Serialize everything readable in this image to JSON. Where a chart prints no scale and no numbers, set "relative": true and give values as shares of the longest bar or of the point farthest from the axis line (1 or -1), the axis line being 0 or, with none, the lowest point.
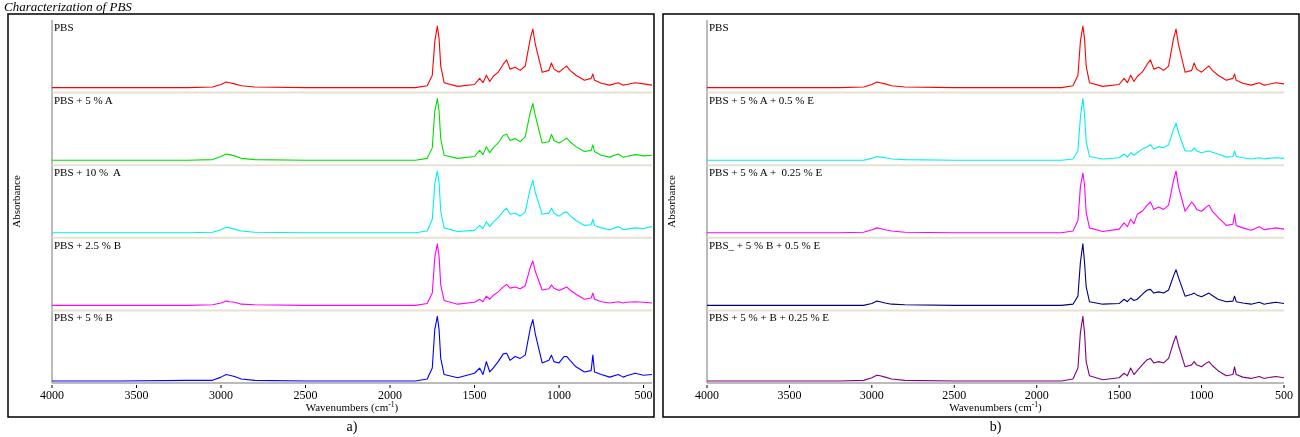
{
  "chart_data": [
    {
      "type": "line",
      "title": "PBS",
      "annotations": [
        "Characterization of PBS"
      ],
      "x": [
        4000,
        3600,
        3200,
        3050,
        3000,
        2970,
        2950,
        2920,
        2880,
        2800,
        2500,
        2000,
        1850,
        1780,
        1750,
        1735,
        1720,
        1710,
        1700,
        1680,
        1600,
        1500,
        1470,
        1450,
        1430,
        1410,
        1390,
        1360,
        1330,
        1310,
        1290,
        1260,
        1230,
        1200,
        1170,
        1155,
        1140,
        1100,
        1060,
        1045,
        1030,
        1000,
        970,
        955,
        935,
        900,
        850,
        810,
        800,
        790,
        750,
        700,
        650,
        620,
        600,
        550,
        500,
        450
      ],
      "xlim": [
        4000,
        450
      ],
      "relative": true,
      "tick_labels": false,
      "series": [
        {
          "color": "#ff0000",
          "values": [
            0,
            0,
            0,
            0.01,
            0.05,
            0.09,
            0.08,
            0.06,
            0.03,
            0.01,
            0,
            0,
            0,
            0.03,
            0.2,
            0.75,
            1,
            0.8,
            0.35,
            0.08,
            0.02,
            0.05,
            0.15,
            0.08,
            0.2,
            0.1,
            0.18,
            0.25,
            0.38,
            0.45,
            0.3,
            0.33,
            0.28,
            0.35,
            0.8,
            0.95,
            0.7,
            0.25,
            0.28,
            0.4,
            0.3,
            0.25,
            0.32,
            0.35,
            0.28,
            0.2,
            0.12,
            0.15,
            0.22,
            0.12,
            0.07,
            0.04,
            0.08,
            0.04,
            0.05,
            0.08,
            0.06,
            0.04
          ]
        }
      ]
    },
    {
      "type": "line",
      "title": "PBS + 5 % A",
      "x": [
        4000,
        3600,
        3200,
        3050,
        3000,
        2970,
        2950,
        2920,
        2880,
        2800,
        2500,
        2000,
        1850,
        1780,
        1750,
        1735,
        1720,
        1710,
        1700,
        1680,
        1600,
        1500,
        1470,
        1450,
        1430,
        1410,
        1390,
        1360,
        1330,
        1310,
        1290,
        1260,
        1230,
        1200,
        1170,
        1155,
        1140,
        1100,
        1060,
        1045,
        1030,
        1000,
        970,
        955,
        935,
        900,
        850,
        810,
        800,
        790,
        750,
        700,
        650,
        620,
        600,
        550,
        500,
        450
      ],
      "xlim": [
        4000,
        450
      ],
      "relative": true,
      "tick_labels": false,
      "series": [
        {
          "color": "#00e000",
          "values": [
            0,
            0,
            0,
            0.01,
            0.06,
            0.1,
            0.09,
            0.07,
            0.03,
            0.01,
            0,
            0,
            0,
            0.03,
            0.2,
            0.8,
            1,
            0.8,
            0.35,
            0.08,
            0.03,
            0.06,
            0.16,
            0.09,
            0.22,
            0.12,
            0.2,
            0.28,
            0.4,
            0.42,
            0.32,
            0.35,
            0.3,
            0.38,
            0.78,
            0.92,
            0.72,
            0.28,
            0.3,
            0.42,
            0.32,
            0.28,
            0.33,
            0.36,
            0.3,
            0.22,
            0.14,
            0.16,
            0.25,
            0.14,
            0.08,
            0.05,
            0.1,
            0.05,
            0.06,
            0.09,
            0.07,
            0.08
          ]
        }
      ]
    },
    {
      "type": "line",
      "title": "PBS + 10 %  A",
      "ylabel": "Absorbance",
      "x": [
        4000,
        3600,
        3200,
        3050,
        3000,
        2970,
        2950,
        2920,
        2880,
        2800,
        2500,
        2000,
        1850,
        1780,
        1750,
        1735,
        1720,
        1710,
        1700,
        1680,
        1600,
        1500,
        1470,
        1450,
        1430,
        1410,
        1390,
        1360,
        1330,
        1310,
        1290,
        1260,
        1230,
        1200,
        1170,
        1155,
        1140,
        1100,
        1060,
        1045,
        1030,
        1000,
        970,
        955,
        935,
        900,
        850,
        810,
        800,
        790,
        750,
        700,
        650,
        620,
        600,
        550,
        500,
        450
      ],
      "xlim": [
        4000,
        450
      ],
      "relative": true,
      "tick_labels": false,
      "series": [
        {
          "color": "#00f0f0",
          "values": [
            0,
            0,
            0,
            0.01,
            0.05,
            0.09,
            0.08,
            0.06,
            0.03,
            0.01,
            0,
            0,
            0,
            0.03,
            0.22,
            0.8,
            1,
            0.82,
            0.35,
            0.08,
            0.02,
            0.04,
            0.12,
            0.07,
            0.18,
            0.1,
            0.17,
            0.25,
            0.35,
            0.4,
            0.3,
            0.32,
            0.27,
            0.34,
            0.72,
            0.85,
            0.65,
            0.3,
            0.32,
            0.4,
            0.32,
            0.27,
            0.33,
            0.34,
            0.28,
            0.2,
            0.12,
            0.13,
            0.22,
            0.12,
            0.08,
            0.05,
            0.1,
            0.05,
            0.06,
            0.08,
            0.07,
            0.1
          ]
        }
      ]
    },
    {
      "type": "line",
      "title": "PBS + 2.5 % B",
      "x": [
        4000,
        3600,
        3200,
        3050,
        3000,
        2970,
        2950,
        2920,
        2880,
        2800,
        2500,
        2000,
        1850,
        1780,
        1750,
        1735,
        1720,
        1710,
        1700,
        1680,
        1600,
        1500,
        1470,
        1450,
        1430,
        1410,
        1390,
        1360,
        1330,
        1310,
        1290,
        1260,
        1230,
        1200,
        1170,
        1155,
        1140,
        1100,
        1060,
        1045,
        1030,
        1000,
        970,
        955,
        935,
        900,
        850,
        810,
        800,
        790,
        750,
        700,
        650,
        620,
        600,
        550,
        500,
        450
      ],
      "xlim": [
        4000,
        450
      ],
      "relative": true,
      "tick_labels": false,
      "series": [
        {
          "color": "#ff00ff",
          "values": [
            0,
            0,
            0,
            0.01,
            0.04,
            0.07,
            0.06,
            0.05,
            0.02,
            0.01,
            0,
            0,
            0,
            0.03,
            0.2,
            0.78,
            1,
            0.8,
            0.33,
            0.08,
            0.02,
            0.05,
            0.1,
            0.06,
            0.15,
            0.1,
            0.16,
            0.22,
            0.3,
            0.34,
            0.28,
            0.3,
            0.27,
            0.32,
            0.62,
            0.72,
            0.55,
            0.25,
            0.27,
            0.33,
            0.28,
            0.24,
            0.28,
            0.3,
            0.25,
            0.18,
            0.1,
            0.12,
            0.2,
            0.1,
            0.06,
            0.04,
            0.06,
            0.04,
            0.05,
            0.06,
            0.05,
            0.04
          ]
        }
      ]
    },
    {
      "type": "line",
      "title": "PBS + 5 % B",
      "xlabel": "Wavenumbers (cm$^{-1}$)",
      "annotations": [
        "a)"
      ],
      "x": [
        4000,
        3600,
        3200,
        3050,
        3000,
        2970,
        2950,
        2920,
        2880,
        2800,
        2500,
        2000,
        1850,
        1780,
        1750,
        1735,
        1720,
        1710,
        1700,
        1680,
        1600,
        1500,
        1470,
        1450,
        1430,
        1410,
        1390,
        1360,
        1330,
        1310,
        1290,
        1260,
        1230,
        1200,
        1170,
        1155,
        1140,
        1100,
        1060,
        1045,
        1030,
        1000,
        970,
        955,
        935,
        900,
        850,
        810,
        800,
        790,
        750,
        700,
        650,
        620,
        600,
        550,
        500,
        450
      ],
      "xlim": [
        4000,
        450
      ],
      "xticks": [
        4000,
        3500,
        3000,
        2500,
        2000,
        1500,
        1000,
        500
      ],
      "relative": true,
      "tick_labels": "x",
      "series": [
        {
          "color": "#0000ff",
          "values": [
            0,
            0,
            0.01,
            0.01,
            0.06,
            0.1,
            0.09,
            0.07,
            0.03,
            0.01,
            0,
            0,
            0,
            0.03,
            0.2,
            0.8,
            1,
            0.8,
            0.35,
            0.1,
            0.05,
            0.12,
            0.2,
            0.1,
            0.3,
            0.14,
            0.2,
            0.3,
            0.42,
            0.43,
            0.32,
            0.38,
            0.35,
            0.4,
            0.82,
            0.95,
            0.72,
            0.28,
            0.32,
            0.4,
            0.3,
            0.28,
            0.38,
            0.38,
            0.32,
            0.22,
            0.14,
            0.16,
            0.4,
            0.14,
            0.1,
            0.06,
            0.1,
            0.06,
            0.08,
            0.12,
            0.09,
            0.1
          ]
        }
      ]
    },
    {
      "type": "line",
      "title": "PBS",
      "x": [
        4000,
        3600,
        3200,
        3050,
        3000,
        2970,
        2950,
        2920,
        2880,
        2800,
        2500,
        2000,
        1850,
        1780,
        1750,
        1735,
        1720,
        1710,
        1700,
        1680,
        1600,
        1500,
        1470,
        1450,
        1430,
        1410,
        1390,
        1360,
        1330,
        1310,
        1290,
        1260,
        1230,
        1200,
        1170,
        1155,
        1140,
        1100,
        1060,
        1045,
        1030,
        1000,
        970,
        955,
        935,
        900,
        850,
        810,
        800,
        790,
        750,
        700,
        650,
        620,
        600,
        550,
        500
      ],
      "xlim": [
        4000,
        500
      ],
      "relative": true,
      "tick_labels": false,
      "series": [
        {
          "color": "#ff0000",
          "values": [
            0,
            0,
            0,
            0.01,
            0.05,
            0.09,
            0.08,
            0.06,
            0.03,
            0.01,
            0,
            0,
            0,
            0.03,
            0.2,
            0.75,
            1,
            0.8,
            0.35,
            0.08,
            0.02,
            0.05,
            0.15,
            0.08,
            0.2,
            0.1,
            0.18,
            0.25,
            0.38,
            0.45,
            0.3,
            0.33,
            0.28,
            0.35,
            0.8,
            0.95,
            0.7,
            0.25,
            0.28,
            0.4,
            0.3,
            0.25,
            0.32,
            0.35,
            0.28,
            0.2,
            0.12,
            0.15,
            0.22,
            0.12,
            0.07,
            0.04,
            0.08,
            0.04,
            0.05,
            0.08,
            0.06
          ]
        }
      ]
    },
    {
      "type": "line",
      "title": "PBS + 5 % A + 0.5 % E",
      "x": [
        4000,
        3600,
        3200,
        3050,
        3000,
        2970,
        2950,
        2920,
        2880,
        2800,
        2500,
        2000,
        1850,
        1780,
        1750,
        1735,
        1720,
        1710,
        1700,
        1680,
        1600,
        1500,
        1470,
        1450,
        1430,
        1410,
        1390,
        1360,
        1330,
        1310,
        1290,
        1260,
        1230,
        1200,
        1170,
        1155,
        1140,
        1100,
        1060,
        1045,
        1030,
        1000,
        970,
        955,
        935,
        900,
        850,
        810,
        800,
        790,
        750,
        700,
        650,
        620,
        600,
        550,
        500
      ],
      "xlim": [
        4000,
        500
      ],
      "relative": true,
      "tick_labels": false,
      "series": [
        {
          "color": "#00f0f0",
          "values": [
            0,
            0,
            0,
            0,
            0.03,
            0.06,
            0.05,
            0.04,
            0.02,
            0.01,
            0,
            0,
            0,
            0.02,
            0.15,
            0.7,
            1,
            0.75,
            0.3,
            0.06,
            0.02,
            0.04,
            0.1,
            0.05,
            0.12,
            0.08,
            0.12,
            0.18,
            0.22,
            0.25,
            0.18,
            0.22,
            0.2,
            0.25,
            0.5,
            0.6,
            0.45,
            0.15,
            0.15,
            0.2,
            0.15,
            0.12,
            0.14,
            0.15,
            0.13,
            0.1,
            0.05,
            0.06,
            0.15,
            0.06,
            0.04,
            0.02,
            0.04,
            0.02,
            0.03,
            0.04,
            0.03
          ]
        }
      ]
    },
    {
      "type": "line",
      "title": "PBS + 5 % A +  0.25 % E",
      "ylabel": "Absorbance",
      "x": [
        4000,
        3600,
        3200,
        3050,
        3000,
        2970,
        2950,
        2920,
        2880,
        2800,
        2500,
        2000,
        1850,
        1780,
        1750,
        1735,
        1720,
        1710,
        1700,
        1680,
        1600,
        1500,
        1470,
        1450,
        1430,
        1410,
        1390,
        1360,
        1330,
        1310,
        1290,
        1260,
        1230,
        1200,
        1170,
        1155,
        1140,
        1100,
        1060,
        1045,
        1030,
        1000,
        970,
        955,
        935,
        900,
        850,
        810,
        800,
        790,
        750,
        700,
        650,
        620,
        600,
        550,
        500
      ],
      "xlim": [
        4000,
        500
      ],
      "relative": true,
      "tick_labels": false,
      "series": [
        {
          "color": "#ff00ff",
          "values": [
            0,
            0,
            0,
            0.01,
            0.05,
            0.08,
            0.07,
            0.05,
            0.03,
            0.01,
            0,
            0,
            0,
            0.03,
            0.2,
            0.75,
            0.97,
            0.78,
            0.33,
            0.08,
            0.02,
            0.06,
            0.16,
            0.1,
            0.22,
            0.15,
            0.3,
            0.35,
            0.45,
            0.5,
            0.38,
            0.42,
            0.38,
            0.45,
            0.85,
            1,
            0.75,
            0.35,
            0.5,
            0.45,
            0.38,
            0.35,
            0.42,
            0.45,
            0.35,
            0.25,
            0.12,
            0.14,
            0.3,
            0.12,
            0.08,
            0.04,
            0.1,
            0.05,
            0.06,
            0.08,
            0.06
          ]
        }
      ]
    },
    {
      "type": "line",
      "title": "PBS_ + 5 % B + 0.5 % E",
      "x": [
        4000,
        3600,
        3200,
        3050,
        3000,
        2970,
        2950,
        2920,
        2880,
        2800,
        2500,
        2000,
        1850,
        1780,
        1750,
        1735,
        1720,
        1710,
        1700,
        1680,
        1600,
        1500,
        1470,
        1450,
        1430,
        1410,
        1390,
        1360,
        1330,
        1310,
        1290,
        1260,
        1230,
        1200,
        1170,
        1155,
        1140,
        1100,
        1060,
        1045,
        1030,
        1000,
        970,
        955,
        935,
        900,
        850,
        810,
        800,
        790,
        750,
        700,
        650,
        620,
        600,
        550,
        500
      ],
      "xlim": [
        4000,
        500
      ],
      "relative": true,
      "tick_labels": false,
      "series": [
        {
          "color": "#000080",
          "values": [
            0,
            0,
            0,
            0,
            0.03,
            0.07,
            0.06,
            0.04,
            0.02,
            0.01,
            0,
            0,
            0,
            0.02,
            0.15,
            0.7,
            1,
            0.7,
            0.3,
            0.06,
            0.02,
            0.03,
            0.1,
            0.06,
            0.12,
            0.08,
            0.1,
            0.18,
            0.25,
            0.26,
            0.2,
            0.22,
            0.2,
            0.25,
            0.48,
            0.58,
            0.45,
            0.15,
            0.18,
            0.2,
            0.17,
            0.14,
            0.18,
            0.2,
            0.16,
            0.1,
            0.06,
            0.07,
            0.15,
            0.06,
            0.04,
            0.02,
            0.05,
            0.02,
            0.03,
            0.05,
            0.03
          ]
        }
      ]
    },
    {
      "type": "line",
      "title": "PBS + 5 % + B + 0.25 % E",
      "xlabel": "Wavenumbers (cm$^{-1}$)",
      "annotations": [
        "b)"
      ],
      "x": [
        4000,
        3600,
        3200,
        3050,
        3000,
        2970,
        2950,
        2920,
        2880,
        2800,
        2500,
        2000,
        1850,
        1780,
        1750,
        1735,
        1720,
        1710,
        1700,
        1680,
        1600,
        1500,
        1470,
        1450,
        1430,
        1410,
        1390,
        1360,
        1330,
        1310,
        1290,
        1260,
        1230,
        1200,
        1170,
        1155,
        1140,
        1100,
        1060,
        1045,
        1030,
        1000,
        970,
        955,
        935,
        900,
        850,
        810,
        800,
        790,
        750,
        700,
        650,
        620,
        600,
        550,
        500
      ],
      "xlim": [
        4000,
        500
      ],
      "xticks": [
        4000,
        3500,
        3000,
        2500,
        2000,
        1500,
        1000,
        500
      ],
      "relative": true,
      "tick_labels": "x",
      "series": [
        {
          "color": "#800080",
          "values": [
            0,
            0,
            0,
            0.01,
            0.05,
            0.09,
            0.08,
            0.06,
            0.03,
            0.01,
            0,
            0,
            0,
            0.03,
            0.2,
            0.75,
            1,
            0.75,
            0.3,
            0.08,
            0.02,
            0.05,
            0.12,
            0.08,
            0.2,
            0.1,
            0.16,
            0.25,
            0.33,
            0.35,
            0.28,
            0.3,
            0.28,
            0.35,
            0.6,
            0.7,
            0.55,
            0.22,
            0.25,
            0.3,
            0.25,
            0.22,
            0.28,
            0.3,
            0.24,
            0.16,
            0.08,
            0.1,
            0.22,
            0.1,
            0.06,
            0.04,
            0.07,
            0.04,
            0.05,
            0.07,
            0.05
          ]
        }
      ]
    }
  ]
}
